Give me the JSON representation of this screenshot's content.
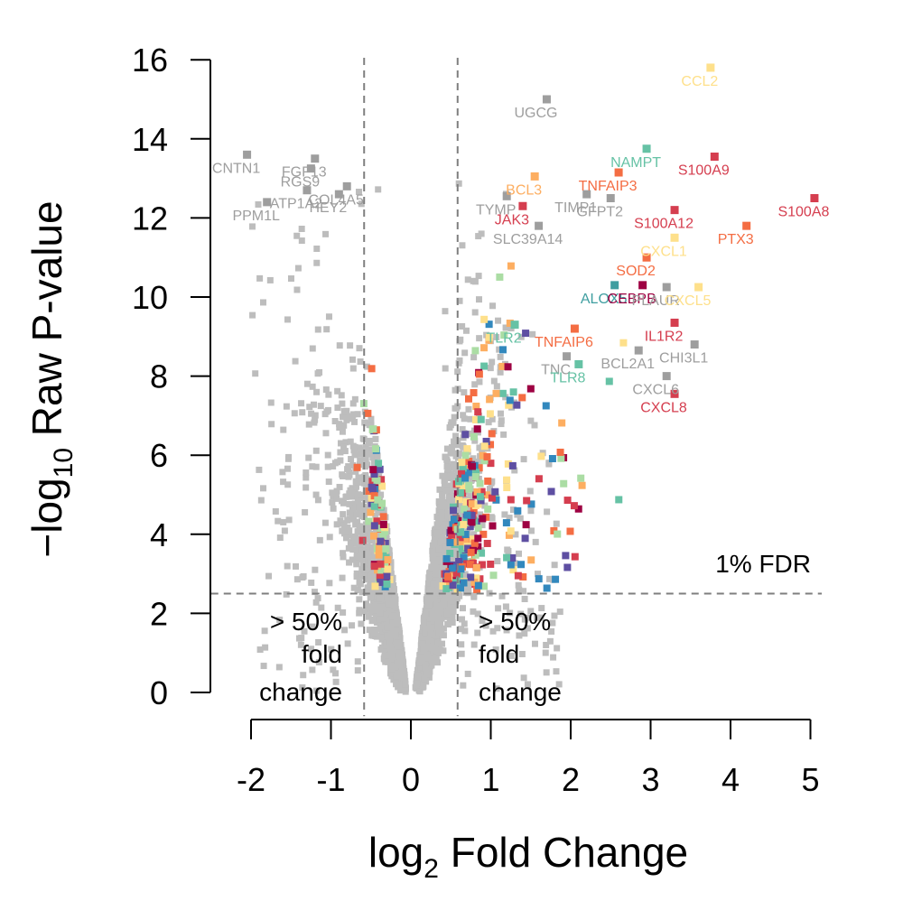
{
  "chart_data": {
    "type": "scatter",
    "title": "",
    "xlabel_main": "log",
    "xlabel_sub": "2",
    "xlabel_rest": " Fold Change",
    "ylabel_pre": "−log",
    "ylabel_sub": "10",
    "ylabel_rest": " Raw P-value",
    "xlim": [
      -2.2,
      5.1
    ],
    "ylim": [
      0,
      16
    ],
    "xticks": [
      "-2",
      "-1",
      "0",
      "1",
      "2",
      "3",
      "4",
      "5"
    ],
    "yticks": [
      "0",
      "2",
      "4",
      "6",
      "8",
      "10",
      "12",
      "14",
      "16"
    ],
    "thresholds": {
      "fdr_y": 2.5,
      "fold_change_x": [
        -0.585,
        0.585
      ]
    },
    "annotations": {
      "fdr": "1% FDR",
      "fold_left": [
        "> 50%",
        "fold",
        "change"
      ],
      "fold_right": [
        "> 50%",
        "fold",
        "change"
      ]
    },
    "palette": [
      "#9e0142",
      "#d53e4f",
      "#f46d43",
      "#fdae61",
      "#fee08b",
      "#abdda4",
      "#66c2a5",
      "#3288bd",
      "#5e4fa2"
    ],
    "background_color": "#bdbdbd",
    "labeled_points": [
      {
        "gene": "UGCG",
        "x": 1.7,
        "y": 15.0,
        "color": "#9e9e9e"
      },
      {
        "gene": "CCL2",
        "x": 3.75,
        "y": 15.8,
        "color": "#fee08b"
      },
      {
        "gene": "NAMPT",
        "x": 2.95,
        "y": 13.75,
        "color": "#66c2a5"
      },
      {
        "gene": "S100A9",
        "x": 3.8,
        "y": 13.55,
        "color": "#d53e4f"
      },
      {
        "gene": "BCL3",
        "x": 1.55,
        "y": 13.05,
        "color": "#fdae61"
      },
      {
        "gene": "TNFAIP3",
        "x": 2.6,
        "y": 13.15,
        "color": "#f46d43"
      },
      {
        "gene": "TIMP1",
        "x": 2.2,
        "y": 12.6,
        "color": "#9e9e9e"
      },
      {
        "gene": "GFPT2",
        "x": 2.5,
        "y": 12.5,
        "color": "#9e9e9e"
      },
      {
        "gene": "TYMP",
        "x": 1.2,
        "y": 12.55,
        "color": "#9e9e9e"
      },
      {
        "gene": "JAK3",
        "x": 1.4,
        "y": 12.3,
        "color": "#d53e4f"
      },
      {
        "gene": "SLC39A14",
        "x": 1.6,
        "y": 11.8,
        "color": "#9e9e9e"
      },
      {
        "gene": "S100A12",
        "x": 3.3,
        "y": 12.2,
        "color": "#d53e4f"
      },
      {
        "gene": "S100A8",
        "x": 5.05,
        "y": 12.5,
        "color": "#d53e4f"
      },
      {
        "gene": "PTX3",
        "x": 4.2,
        "y": 11.8,
        "color": "#f46d43"
      },
      {
        "gene": "CXCL1",
        "x": 3.3,
        "y": 11.5,
        "color": "#fee08b"
      },
      {
        "gene": "SOD2",
        "x": 2.95,
        "y": 11.0,
        "color": "#f46d43"
      },
      {
        "gene": "ALOX5",
        "x": 2.55,
        "y": 10.3,
        "color": "#3f9ea0"
      },
      {
        "gene": "CEBPB",
        "x": 2.9,
        "y": 10.3,
        "color": "#9e0142"
      },
      {
        "gene": "PLAUR",
        "x": 3.2,
        "y": 10.25,
        "color": "#9e9e9e"
      },
      {
        "gene": "CXCL5",
        "x": 3.6,
        "y": 10.25,
        "color": "#fee08b"
      },
      {
        "gene": "TLR2",
        "x": 1.3,
        "y": 9.3,
        "color": "#66c2a5"
      },
      {
        "gene": "TNFAIP6",
        "x": 2.05,
        "y": 9.2,
        "color": "#f46d43"
      },
      {
        "gene": "IL1R2",
        "x": 3.3,
        "y": 9.35,
        "color": "#d53e4f"
      },
      {
        "gene": "TNC",
        "x": 1.95,
        "y": 8.5,
        "color": "#9e9e9e"
      },
      {
        "gene": "BCL2A1",
        "x": 2.85,
        "y": 8.65,
        "color": "#9e9e9e"
      },
      {
        "gene": "CHI3L1",
        "x": 3.55,
        "y": 8.8,
        "color": "#9e9e9e"
      },
      {
        "gene": "TLR8",
        "x": 2.1,
        "y": 8.3,
        "color": "#66c2a5"
      },
      {
        "gene": "CXCL6",
        "x": 3.2,
        "y": 8.0,
        "color": "#9e9e9e"
      },
      {
        "gene": "CXCL8",
        "x": 3.3,
        "y": 7.55,
        "color": "#d53e4f"
      },
      {
        "gene": "CNTN1",
        "x": -2.05,
        "y": 13.6,
        "color": "#9e9e9e"
      },
      {
        "gene": "FGF13",
        "x": -1.2,
        "y": 13.5,
        "color": "#9e9e9e"
      },
      {
        "gene": "RGS9",
        "x": -1.25,
        "y": 13.25,
        "color": "#9e9e9e"
      },
      {
        "gene": "COL4A5",
        "x": -0.8,
        "y": 12.8,
        "color": "#9e9e9e"
      },
      {
        "gene": "HEY2",
        "x": -0.9,
        "y": 12.6,
        "color": "#9e9e9e"
      },
      {
        "gene": "ATP1A2",
        "x": -1.3,
        "y": 12.7,
        "color": "#9e9e9e"
      },
      {
        "gene": "PPM1L",
        "x": -1.8,
        "y": 12.4,
        "color": "#9e9e9e"
      }
    ]
  }
}
